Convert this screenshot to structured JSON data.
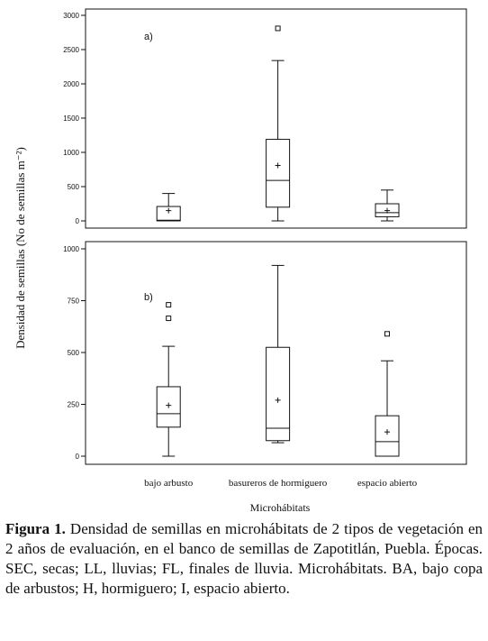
{
  "chart_data": [
    {
      "type": "box",
      "annotation": "a)",
      "categories": [
        null,
        null,
        null
      ],
      "ylim": [
        0,
        3000
      ],
      "yticks": [
        0,
        500,
        1000,
        1500,
        2000,
        2500,
        3000
      ],
      "boxes": [
        {
          "whislo": 0,
          "q1": 0,
          "med": 10,
          "q3": 210,
          "whishi": 400,
          "mean": 150,
          "fliers": []
        },
        {
          "whislo": 0,
          "q1": 200,
          "med": 590,
          "q3": 1190,
          "whishi": 2340,
          "mean": 810,
          "fliers": [
            2810
          ]
        },
        {
          "whislo": 0,
          "q1": 60,
          "med": 120,
          "q3": 250,
          "whishi": 450,
          "mean": 150,
          "fliers": []
        }
      ]
    },
    {
      "type": "box",
      "annotation": "b)",
      "categories": [
        "bajo arbusto",
        "basureros de hormiguero",
        "espacio abierto"
      ],
      "ylim": [
        0,
        1000
      ],
      "yticks": [
        0,
        250,
        500,
        750,
        1000
      ],
      "boxes": [
        {
          "whislo": 0,
          "q1": 140,
          "med": 205,
          "q3": 335,
          "whishi": 530,
          "mean": 245,
          "fliers": [
            665,
            730
          ]
        },
        {
          "whislo": 65,
          "q1": 75,
          "med": 135,
          "q3": 525,
          "whishi": 920,
          "mean": 270,
          "fliers": []
        },
        {
          "whislo": 0,
          "q1": 0,
          "med": 70,
          "q3": 195,
          "whishi": 460,
          "mean": 117,
          "fliers": [
            590
          ]
        }
      ]
    }
  ],
  "y_label": "Densidad de semillas (No de semillas m⁻²)",
  "x_label": "Microhábitats",
  "caption": {
    "label": "Figura 1.",
    "text": "Densidad de semillas en microhábitats de 2 tipos de vegetación en 2 años de evaluación, en el banco de semillas de Zapotitlán, Puebla.  Épocas. SEC,  secas; LL, lluvias; FL, finales de lluvia. Microhábitats. BA, bajo copa de arbustos; H, hormiguero; I, espacio abierto."
  }
}
